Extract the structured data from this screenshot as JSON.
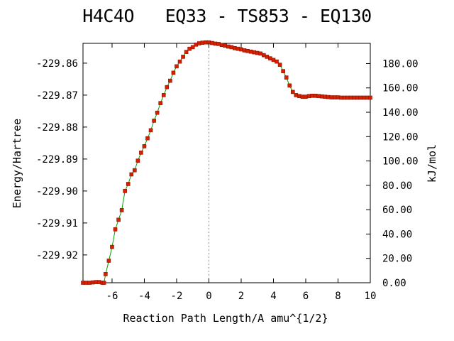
{
  "chart_data": {
    "type": "line",
    "title": "H4C4O   EQ33 - TS853 - EQ130",
    "xlabel": "Reaction Path Length/A amu^{1/2}",
    "ylabel": "Energy/Hartree",
    "y2label": "kJ/mol",
    "xlim": [
      -7.8,
      10
    ],
    "ylim": [
      -229.9287,
      -229.8538
    ],
    "y2lim": [
      0,
      196.6
    ],
    "x_ticks": [
      -6,
      -4,
      -2,
      0,
      2,
      4,
      6,
      8,
      10
    ],
    "x_tick_labels": [
      "-6",
      "-4",
      "-2",
      "0",
      "2",
      "4",
      "6",
      "8",
      "10"
    ],
    "y_ticks": [
      -229.86,
      -229.87,
      -229.88,
      -229.89,
      -229.9,
      -229.91,
      -229.92
    ],
    "y_tick_labels": [
      "-229.86",
      "-229.87",
      "-229.88",
      "-229.89",
      "-229.90",
      "-229.91",
      "-229.92"
    ],
    "y2_ticks": [
      0,
      20,
      40,
      60,
      80,
      100,
      120,
      140,
      160,
      180
    ],
    "y2_tick_labels": [
      "0.00",
      "20.00",
      "40.00",
      "60.00",
      "80.00",
      "100.00",
      "120.00",
      "140.00",
      "160.00",
      "180.00"
    ],
    "ts_marker_x": 0,
    "grid": false,
    "colors": {
      "line": "#00a000",
      "points": "#d62000",
      "point_edge": "#8a1000",
      "ts_line": "#888888"
    },
    "series": [
      {
        "x": [
          -7.8,
          -7.6,
          -7.4,
          -7.2,
          -7.0,
          -6.8,
          -6.6,
          -6.5,
          -6.4,
          -6.2,
          -6.0,
          -5.8,
          -5.6,
          -5.4,
          -5.2,
          -5.0,
          -4.8,
          -4.6,
          -4.4,
          -4.2,
          -4.0,
          -3.8,
          -3.6,
          -3.4,
          -3.2,
          -3.0,
          -2.8,
          -2.6,
          -2.4,
          -2.2,
          -2.0,
          -1.8,
          -1.6,
          -1.4,
          -1.2,
          -1.0,
          -0.8,
          -0.6,
          -0.4,
          -0.2,
          0.0,
          0.2,
          0.4,
          0.6,
          0.8,
          1.0,
          1.2,
          1.4,
          1.6,
          1.8,
          2.0,
          2.2,
          2.4,
          2.6,
          2.8,
          3.0,
          3.2,
          3.4,
          3.6,
          3.8,
          4.0,
          4.2,
          4.4,
          4.6,
          4.8,
          5.0,
          5.2,
          5.4,
          5.6,
          5.8,
          6.0,
          6.2,
          6.4,
          6.6,
          6.8,
          7.0,
          7.2,
          7.4,
          7.6,
          7.8,
          8.0,
          8.2,
          8.4,
          8.6,
          8.8,
          9.0,
          9.2,
          9.4,
          9.6,
          9.8,
          10.0
        ],
        "y": [
          -229.9287,
          -229.9287,
          -229.9287,
          -229.9286,
          -229.9285,
          -229.9285,
          -229.9287,
          -229.9287,
          -229.926,
          -229.9218,
          -229.9175,
          -229.912,
          -229.909,
          -229.906,
          -229.9,
          -229.8978,
          -229.8948,
          -229.8935,
          -229.8905,
          -229.888,
          -229.886,
          -229.8835,
          -229.881,
          -229.878,
          -229.8755,
          -229.8725,
          -229.87,
          -229.8675,
          -229.8655,
          -229.863,
          -229.861,
          -229.8595,
          -229.858,
          -229.8565,
          -229.8555,
          -229.855,
          -229.8542,
          -229.8538,
          -229.8536,
          -229.8535,
          -229.8535,
          -229.8537,
          -229.8539,
          -229.854,
          -229.8543,
          -229.8545,
          -229.8548,
          -229.855,
          -229.8553,
          -229.8555,
          -229.8557,
          -229.856,
          -229.8562,
          -229.8564,
          -229.8566,
          -229.8568,
          -229.857,
          -229.8575,
          -229.858,
          -229.8585,
          -229.859,
          -229.8595,
          -229.8605,
          -229.8625,
          -229.8645,
          -229.867,
          -229.869,
          -229.87,
          -229.8703,
          -229.8705,
          -229.8705,
          -229.8703,
          -229.8702,
          -229.8702,
          -229.8703,
          -229.8704,
          -229.8705,
          -229.8706,
          -229.8707,
          -229.8707,
          -229.8707,
          -229.8708,
          -229.8708,
          -229.8708,
          -229.8708,
          -229.8708,
          -229.8708,
          -229.8708,
          -229.8708,
          -229.8708,
          -229.8708
        ]
      }
    ]
  }
}
